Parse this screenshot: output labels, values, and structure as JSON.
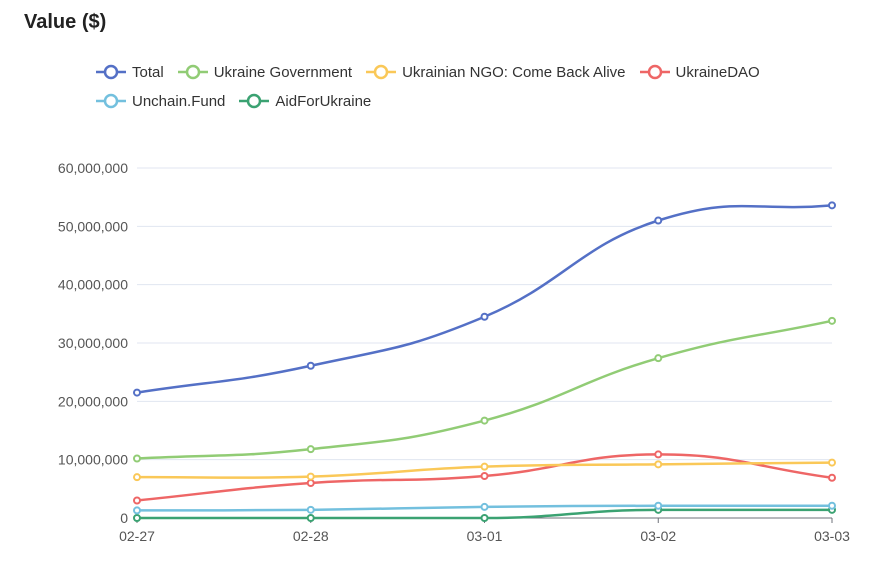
{
  "title": "Value ($)",
  "chart_data": {
    "type": "line",
    "x": [
      "02-27",
      "02-28",
      "03-01",
      "03-02",
      "03-03"
    ],
    "ylim": [
      0,
      60000000
    ],
    "yticks": [
      0,
      10000000,
      20000000,
      30000000,
      40000000,
      50000000,
      60000000
    ],
    "ytick_labels": [
      "0",
      "10,000,000",
      "20,000,000",
      "30,000,000",
      "40,000,000",
      "50,000,000",
      "60,000,000"
    ],
    "grid": true,
    "legend_position": "top",
    "series": [
      {
        "name": "Total",
        "color": "#5470c6",
        "values": [
          21500000,
          26100000,
          34500000,
          51000000,
          53600000
        ]
      },
      {
        "name": "Ukraine Government",
        "color": "#91cc75",
        "values": [
          10200000,
          11800000,
          16700000,
          27400000,
          33800000
        ]
      },
      {
        "name": "Ukrainian NGO: Come Back Alive",
        "color": "#fac858",
        "values": [
          7000000,
          7100000,
          8800000,
          9200000,
          9500000
        ]
      },
      {
        "name": "UkraineDAO",
        "color": "#ee6666",
        "values": [
          3000000,
          6000000,
          7200000,
          10900000,
          6900000
        ]
      },
      {
        "name": "Unchain.Fund",
        "color": "#73c0de",
        "values": [
          1300000,
          1400000,
          1900000,
          2100000,
          2100000
        ]
      },
      {
        "name": "AidForUkraine",
        "color": "#3ba272",
        "values": [
          0,
          0,
          0,
          1400000,
          1400000
        ]
      }
    ]
  }
}
